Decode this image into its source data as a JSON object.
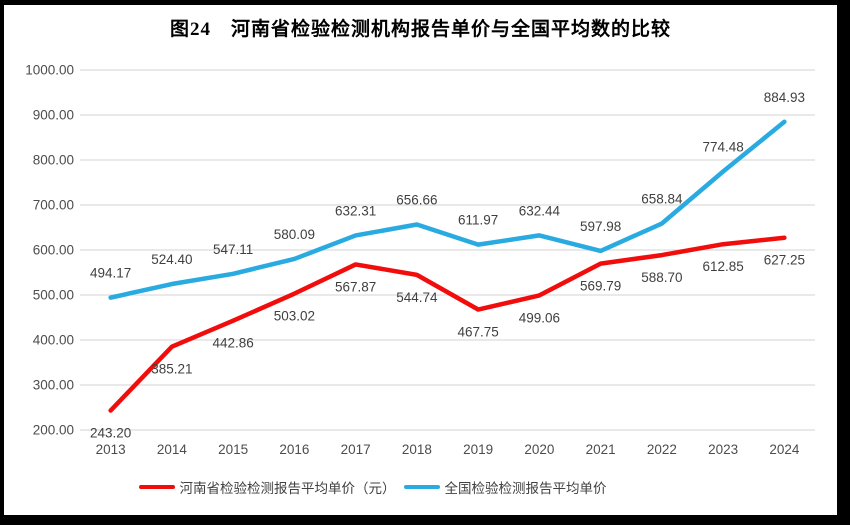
{
  "title": "图24　河南省检验检测机构报告单价与全国平均数的比较",
  "chart_data": {
    "type": "line",
    "categories": [
      "2013",
      "2014",
      "2015",
      "2016",
      "2017",
      "2018",
      "2019",
      "2020",
      "2021",
      "2022",
      "2023",
      "2024"
    ],
    "series": [
      {
        "name": "河南省检验检测报告平均单价（元）",
        "color": "#f20d0d",
        "values": [
          243.2,
          385.21,
          442.86,
          503.02,
          567.87,
          544.74,
          467.75,
          499.06,
          569.79,
          588.7,
          612.85,
          627.25
        ],
        "data_label_position": "below"
      },
      {
        "name": "全国检验检测报告平均单价",
        "color": "#29abe2",
        "values": [
          494.17,
          524.4,
          547.11,
          580.09,
          632.31,
          656.66,
          611.97,
          632.44,
          597.98,
          658.84,
          774.48,
          884.93
        ],
        "data_label_position": "above"
      }
    ],
    "ylim": [
      200,
      1000
    ],
    "ytick_labels": [
      "200.00",
      "300.00",
      "400.00",
      "500.00",
      "600.00",
      "700.00",
      "800.00",
      "900.00",
      "1000.00"
    ],
    "grid": true,
    "data_labels": true,
    "legend_position": "bottom"
  },
  "colors": {
    "background": "#ffffff",
    "frame_border": "#000000",
    "gridline": "#dcdcdc",
    "tick_text": "#4d4d4d",
    "data_label_text": "#404040"
  }
}
